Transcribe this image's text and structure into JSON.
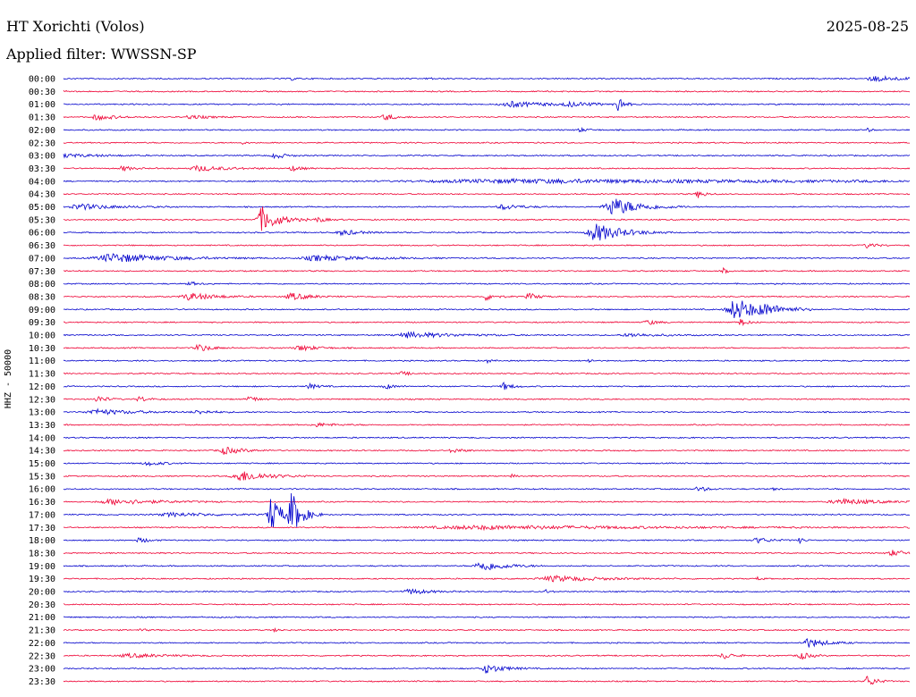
{
  "header": {
    "station": "HT Xorichti (Volos)",
    "date": "2025-08-25",
    "filter": "Applied filter: WWSSN-SP"
  },
  "chart_data": {
    "type": "line",
    "ylabel": "HHZ - 50000",
    "colors": [
      "#0000cc",
      "#ee0033"
    ],
    "rows": [
      {
        "label": "00:00",
        "events": [
          {
            "t": 0.27,
            "a": 2,
            "w": 0.004
          },
          {
            "t": 0.43,
            "a": 2,
            "w": 0.004
          },
          {
            "t": 0.96,
            "a": 3,
            "w": 0.03
          }
        ]
      },
      {
        "label": "00:30",
        "events": [
          {
            "t": 0.0,
            "a": 2,
            "w": 0.004
          }
        ]
      },
      {
        "label": "01:00",
        "events": [
          {
            "t": 0.53,
            "a": 3,
            "w": 0.04
          },
          {
            "t": 0.655,
            "a": 10,
            "w": 0.006
          },
          {
            "t": 0.6,
            "a": 2,
            "w": 0.03
          }
        ]
      },
      {
        "label": "01:30",
        "events": [
          {
            "t": 0.04,
            "a": 3,
            "w": 0.02
          },
          {
            "t": 0.15,
            "a": 2,
            "w": 0.02
          },
          {
            "t": 0.38,
            "a": 4,
            "w": 0.01
          }
        ]
      },
      {
        "label": "02:00",
        "events": [
          {
            "t": 0.61,
            "a": 2,
            "w": 0.01
          },
          {
            "t": 0.95,
            "a": 2,
            "w": 0.005
          }
        ]
      },
      {
        "label": "02:30",
        "events": [
          {
            "t": 0.21,
            "a": 2,
            "w": 0.004
          }
        ]
      },
      {
        "label": "03:00",
        "events": [
          {
            "t": 0.0,
            "a": 2,
            "w": 0.04
          },
          {
            "t": 0.25,
            "a": 4,
            "w": 0.01
          }
        ]
      },
      {
        "label": "03:30",
        "events": [
          {
            "t": 0.07,
            "a": 3,
            "w": 0.01
          },
          {
            "t": 0.16,
            "a": 3,
            "w": 0.03
          },
          {
            "t": 0.27,
            "a": 3,
            "w": 0.01
          }
        ]
      },
      {
        "label": "04:00",
        "events": [
          {
            "t": 0.55,
            "a": 2,
            "w": 0.4
          }
        ]
      },
      {
        "label": "04:30",
        "events": [
          {
            "t": 0.75,
            "a": 4,
            "w": 0.008
          }
        ]
      },
      {
        "label": "05:00",
        "events": [
          {
            "t": 0.02,
            "a": 3,
            "w": 0.04
          },
          {
            "t": 0.52,
            "a": 3,
            "w": 0.02
          },
          {
            "t": 0.65,
            "a": 10,
            "w": 0.03
          }
        ]
      },
      {
        "label": "05:30",
        "events": [
          {
            "t": 0.235,
            "a": 14,
            "w": 0.018
          },
          {
            "t": 0.3,
            "a": 3,
            "w": 0.01
          }
        ]
      },
      {
        "label": "06:00",
        "events": [
          {
            "t": 0.33,
            "a": 3,
            "w": 0.02
          },
          {
            "t": 0.63,
            "a": 10,
            "w": 0.03
          }
        ]
      },
      {
        "label": "06:30",
        "events": [
          {
            "t": 0.95,
            "a": 3,
            "w": 0.01
          }
        ]
      },
      {
        "label": "07:00",
        "events": [
          {
            "t": 0.06,
            "a": 5,
            "w": 0.06
          },
          {
            "t": 0.3,
            "a": 3,
            "w": 0.05
          }
        ]
      },
      {
        "label": "07:30",
        "events": [
          {
            "t": 0.78,
            "a": 3,
            "w": 0.004
          }
        ]
      },
      {
        "label": "08:00",
        "events": [
          {
            "t": 0.15,
            "a": 2,
            "w": 0.01
          }
        ]
      },
      {
        "label": "08:30",
        "events": [
          {
            "t": 0.15,
            "a": 4,
            "w": 0.03
          },
          {
            "t": 0.27,
            "a": 4,
            "w": 0.02
          },
          {
            "t": 0.5,
            "a": 4,
            "w": 0.01
          },
          {
            "t": 0.55,
            "a": 4,
            "w": 0.01
          }
        ]
      },
      {
        "label": "09:00",
        "events": [
          {
            "t": 0.795,
            "a": 12,
            "w": 0.03
          },
          {
            "t": 0.83,
            "a": 3,
            "w": 0.02
          }
        ]
      },
      {
        "label": "09:30",
        "events": [
          {
            "t": 0.69,
            "a": 3,
            "w": 0.01
          },
          {
            "t": 0.8,
            "a": 4,
            "w": 0.008
          }
        ]
      },
      {
        "label": "10:00",
        "events": [
          {
            "t": 0.41,
            "a": 3,
            "w": 0.05
          },
          {
            "t": 0.67,
            "a": 2,
            "w": 0.03
          }
        ]
      },
      {
        "label": "10:30",
        "events": [
          {
            "t": 0.16,
            "a": 4,
            "w": 0.015
          },
          {
            "t": 0.28,
            "a": 3,
            "w": 0.02
          }
        ]
      },
      {
        "label": "11:00",
        "events": [
          {
            "t": 0.5,
            "a": 3,
            "w": 0.004
          },
          {
            "t": 0.62,
            "a": 3,
            "w": 0.004
          }
        ]
      },
      {
        "label": "11:30",
        "events": [
          {
            "t": 0.4,
            "a": 2,
            "w": 0.01
          }
        ]
      },
      {
        "label": "12:00",
        "events": [
          {
            "t": 0.29,
            "a": 3,
            "w": 0.01
          },
          {
            "t": 0.38,
            "a": 3,
            "w": 0.01
          },
          {
            "t": 0.52,
            "a": 4,
            "w": 0.01
          }
        ]
      },
      {
        "label": "12:30",
        "events": [
          {
            "t": 0.04,
            "a": 4,
            "w": 0.01
          },
          {
            "t": 0.09,
            "a": 3,
            "w": 0.01
          },
          {
            "t": 0.22,
            "a": 4,
            "w": 0.008
          }
        ]
      },
      {
        "label": "13:00",
        "events": [
          {
            "t": 0.04,
            "a": 3,
            "w": 0.04
          },
          {
            "t": 0.16,
            "a": 2,
            "w": 0.02
          }
        ]
      },
      {
        "label": "13:30",
        "events": [
          {
            "t": 0.3,
            "a": 2,
            "w": 0.02
          }
        ]
      },
      {
        "label": "14:00",
        "events": []
      },
      {
        "label": "14:30",
        "events": [
          {
            "t": 0.19,
            "a": 4,
            "w": 0.02
          },
          {
            "t": 0.46,
            "a": 3,
            "w": 0.01
          }
        ]
      },
      {
        "label": "15:00",
        "events": [
          {
            "t": 0.1,
            "a": 2,
            "w": 0.02
          }
        ]
      },
      {
        "label": "15:30",
        "events": [
          {
            "t": 0.21,
            "a": 6,
            "w": 0.03
          },
          {
            "t": 0.53,
            "a": 2,
            "w": 0.004
          }
        ]
      },
      {
        "label": "16:00",
        "events": [
          {
            "t": 0.75,
            "a": 3,
            "w": 0.01
          },
          {
            "t": 0.84,
            "a": 2,
            "w": 0.005
          }
        ]
      },
      {
        "label": "16:30",
        "events": [
          {
            "t": 0.06,
            "a": 3,
            "w": 0.05
          },
          {
            "t": 0.92,
            "a": 3,
            "w": 0.04
          }
        ]
      },
      {
        "label": "17:00",
        "events": [
          {
            "t": 0.245,
            "a": 20,
            "w": 0.012
          },
          {
            "t": 0.27,
            "a": 22,
            "w": 0.012
          },
          {
            "t": 0.13,
            "a": 2,
            "w": 0.05
          }
        ]
      },
      {
        "label": "17:30",
        "events": [
          {
            "t": 0.5,
            "a": 2,
            "w": 0.2
          }
        ]
      },
      {
        "label": "18:00",
        "events": [
          {
            "t": 0.09,
            "a": 3,
            "w": 0.01
          },
          {
            "t": 0.82,
            "a": 3,
            "w": 0.015
          },
          {
            "t": 0.87,
            "a": 3,
            "w": 0.005
          }
        ]
      },
      {
        "label": "18:30",
        "events": [
          {
            "t": 0.98,
            "a": 3,
            "w": 0.02
          }
        ]
      },
      {
        "label": "19:00",
        "events": [
          {
            "t": 0.495,
            "a": 6,
            "w": 0.025
          }
        ]
      },
      {
        "label": "19:30",
        "events": [
          {
            "t": 0.58,
            "a": 3,
            "w": 0.05
          },
          {
            "t": 0.82,
            "a": 2,
            "w": 0.005
          }
        ]
      },
      {
        "label": "20:00",
        "events": [
          {
            "t": 0.41,
            "a": 3,
            "w": 0.02
          },
          {
            "t": 0.57,
            "a": 2,
            "w": 0.005
          }
        ]
      },
      {
        "label": "20:30",
        "events": []
      },
      {
        "label": "21:00",
        "events": []
      },
      {
        "label": "21:30",
        "events": [
          {
            "t": 0.09,
            "a": 2,
            "w": 0.005
          },
          {
            "t": 0.25,
            "a": 2,
            "w": 0.005
          }
        ]
      },
      {
        "label": "22:00",
        "events": [
          {
            "t": 0.88,
            "a": 5,
            "w": 0.02
          }
        ]
      },
      {
        "label": "22:30",
        "events": [
          {
            "t": 0.08,
            "a": 2,
            "w": 0.04
          },
          {
            "t": 0.78,
            "a": 4,
            "w": 0.01
          },
          {
            "t": 0.87,
            "a": 5,
            "w": 0.01
          }
        ]
      },
      {
        "label": "23:00",
        "events": [
          {
            "t": 0.5,
            "a": 5,
            "w": 0.02
          }
        ]
      },
      {
        "label": "23:30",
        "events": [
          {
            "t": 0.95,
            "a": 6,
            "w": 0.01
          }
        ]
      }
    ]
  }
}
